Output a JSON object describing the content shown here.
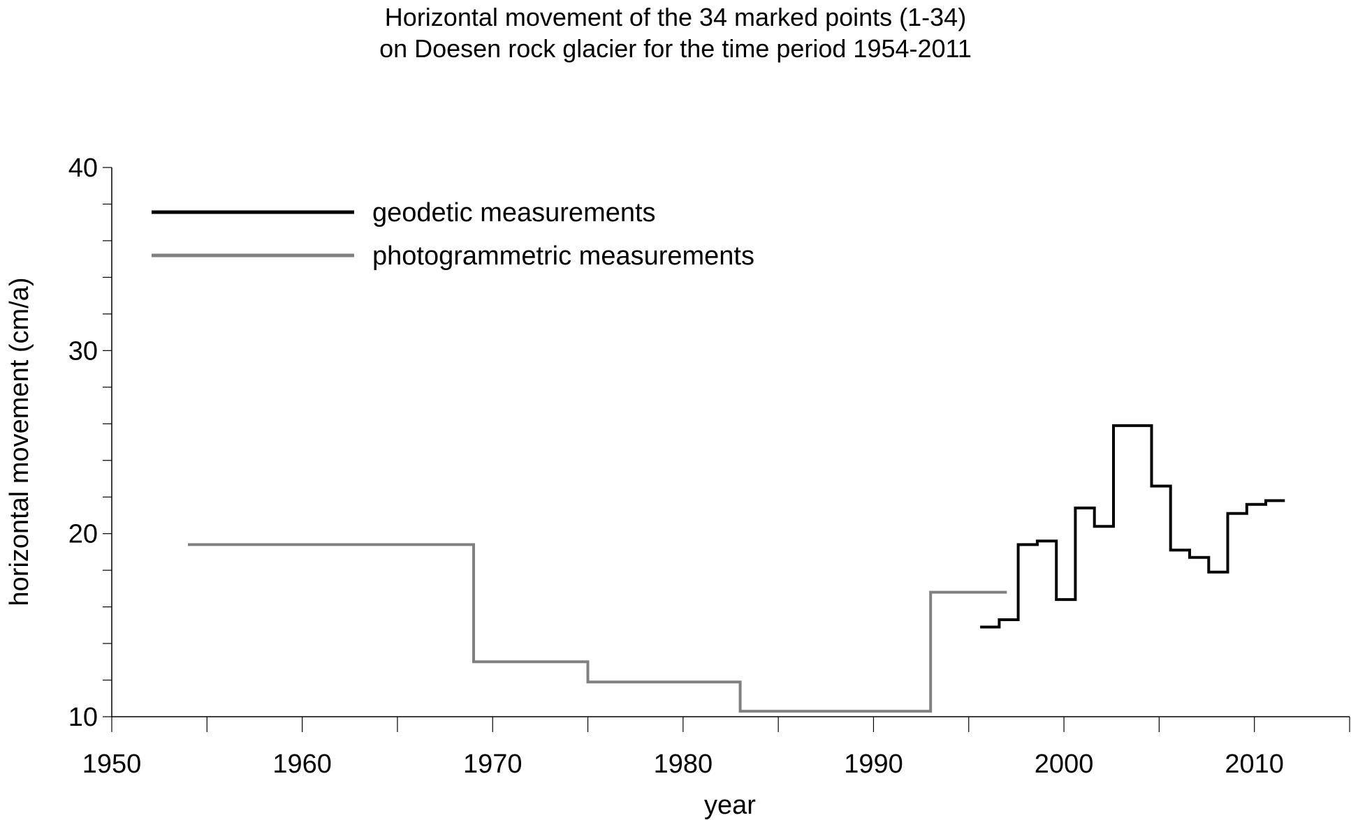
{
  "chart_data": {
    "type": "line",
    "step": true,
    "title": [
      "Horizontal movement of the 34 marked points (1-34)",
      "on Doesen rock glacier for the time period 1954-2011"
    ],
    "xlabel": "year",
    "ylabel": "horizontal movement (cm/a)",
    "xlim": [
      1950,
      2015
    ],
    "ylim": [
      10,
      40
    ],
    "xticks": [
      1950,
      1960,
      1970,
      1980,
      1990,
      2000,
      2010
    ],
    "yticks": [
      10,
      20,
      30,
      40
    ],
    "grid": false,
    "legend_position": "top-left",
    "series": [
      {
        "name": "geodetic measurements",
        "color": "#000000",
        "points": [
          [
            1995.6,
            14.9
          ],
          [
            1996.6,
            14.9
          ],
          [
            1996.6,
            15.3
          ],
          [
            1997.6,
            15.3
          ],
          [
            1997.6,
            19.4
          ],
          [
            1998.6,
            19.4
          ],
          [
            1998.6,
            19.6
          ],
          [
            1999.6,
            19.6
          ],
          [
            1999.6,
            16.4
          ],
          [
            2000.6,
            16.4
          ],
          [
            2000.6,
            21.4
          ],
          [
            2001.6,
            21.4
          ],
          [
            2001.6,
            20.4
          ],
          [
            2002.6,
            20.4
          ],
          [
            2002.6,
            25.9
          ],
          [
            2004.6,
            25.9
          ],
          [
            2004.6,
            22.6
          ],
          [
            2005.6,
            22.6
          ],
          [
            2005.6,
            19.1
          ],
          [
            2006.6,
            19.1
          ],
          [
            2006.6,
            18.7
          ],
          [
            2007.6,
            18.7
          ],
          [
            2007.6,
            17.9
          ],
          [
            2008.6,
            17.9
          ],
          [
            2008.6,
            21.1
          ],
          [
            2009.6,
            21.1
          ],
          [
            2009.6,
            21.6
          ],
          [
            2010.6,
            21.6
          ],
          [
            2010.6,
            21.8
          ],
          [
            2011.6,
            21.8
          ]
        ]
      },
      {
        "name": "photogrammetric measurements",
        "color": "#808080",
        "points": [
          [
            1954,
            19.4
          ],
          [
            1969,
            19.4
          ],
          [
            1969,
            13.0
          ],
          [
            1975,
            13.0
          ],
          [
            1975,
            11.9
          ],
          [
            1983,
            11.9
          ],
          [
            1983,
            10.3
          ],
          [
            1993,
            10.3
          ],
          [
            1993,
            16.8
          ],
          [
            1997,
            16.8
          ]
        ]
      }
    ]
  }
}
